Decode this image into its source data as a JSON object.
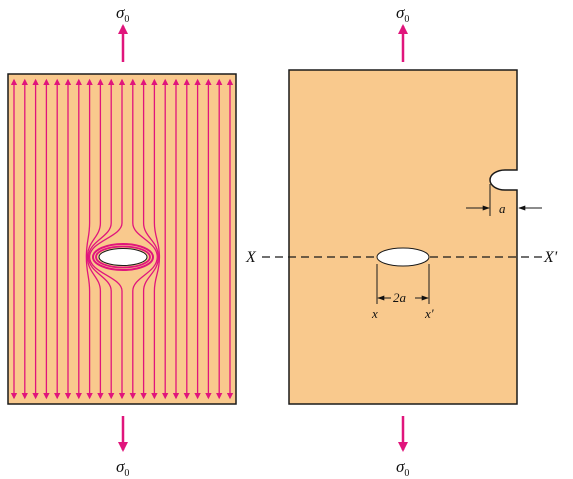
{
  "colors": {
    "plate_fill": "#f9c98d",
    "plate_stroke": "#1a1a1a",
    "stress_lines": "#e0157c",
    "hole_fill": "#ffffff",
    "ink": "#111111"
  },
  "left_panel": {
    "stress_symbol": "σ",
    "stress_subscript": "0",
    "line_count": 21
  },
  "right_panel": {
    "stress_symbol": "σ",
    "stress_subscript": "0",
    "section_left": "X",
    "section_right": "X'",
    "hole_width_label": "2a",
    "hole_left_point": "x",
    "hole_right_point": "x'",
    "edge_crack_label": "a"
  }
}
